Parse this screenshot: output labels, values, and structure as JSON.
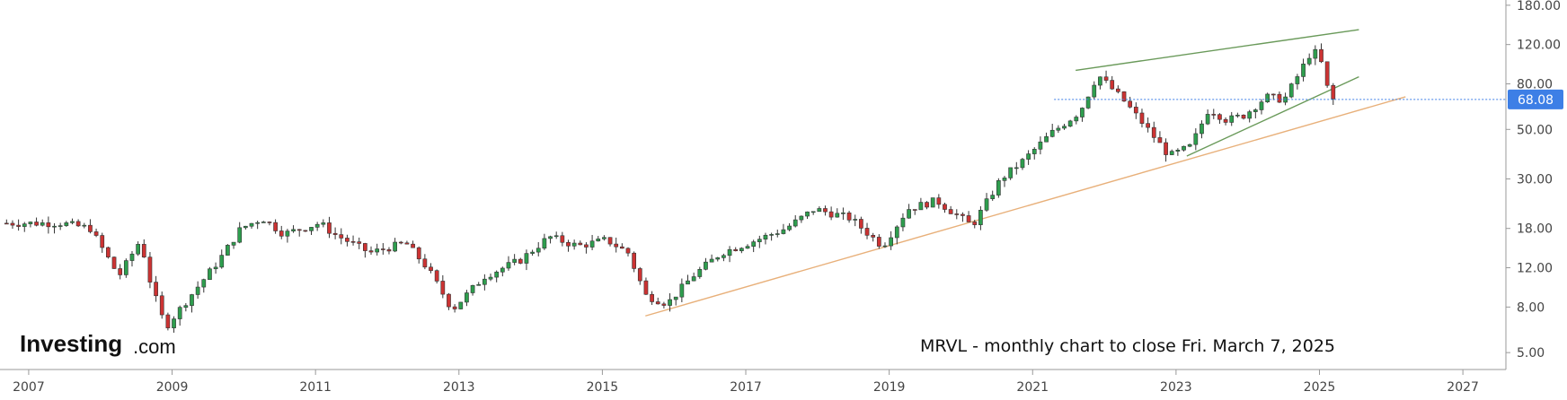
{
  "chart_data": {
    "type": "candlestick",
    "title": "MRVL - monthly chart to close Fri. March 7, 2025",
    "source_logo": {
      "main": "Investing",
      "suffix": ".com"
    },
    "y_scale": "log",
    "ylim": [
      4.2,
      190
    ],
    "xlim": [
      2006.6,
      2027.6
    ],
    "y_ticks": [
      "180.00",
      "120.00",
      "80.00",
      "50.00",
      "30.00",
      "18.00",
      "12.00",
      "8.00",
      "5.00"
    ],
    "x_ticks": [
      "2007",
      "2009",
      "2011",
      "2013",
      "2015",
      "2017",
      "2019",
      "2021",
      "2023",
      "2025",
      "2027"
    ],
    "last_price": {
      "value": 68.08,
      "label": "68.08"
    },
    "colors": {
      "up": "#2e9e4e",
      "down": "#cc3333",
      "wick": "#333333",
      "price_tag": "#3d7fe6",
      "price_line": "#3d7fe6",
      "trend_upper": "#6a9a5a",
      "trend_lower": "#e8b07a",
      "axis": "#999999"
    },
    "anchors": [
      [
        2006.65,
        19
      ],
      [
        2007.5,
        19
      ],
      [
        2007.9,
        18
      ],
      [
        2008.3,
        11
      ],
      [
        2008.6,
        16
      ],
      [
        2008.75,
        10
      ],
      [
        2008.95,
        6.5
      ],
      [
        2009.3,
        9
      ],
      [
        2009.7,
        13
      ],
      [
        2010.0,
        18
      ],
      [
        2010.3,
        20
      ],
      [
        2010.6,
        17
      ],
      [
        2011.1,
        19
      ],
      [
        2011.3,
        17
      ],
      [
        2011.8,
        14
      ],
      [
        2012.3,
        15.5
      ],
      [
        2012.6,
        12
      ],
      [
        2012.95,
        7.8
      ],
      [
        2013.4,
        11
      ],
      [
        2013.9,
        13
      ],
      [
        2014.3,
        16.5
      ],
      [
        2014.7,
        15
      ],
      [
        2015.1,
        16
      ],
      [
        2015.4,
        14
      ],
      [
        2015.65,
        9
      ],
      [
        2015.95,
        8.3
      ],
      [
        2016.3,
        11
      ],
      [
        2016.7,
        14
      ],
      [
        2017.2,
        16
      ],
      [
        2017.6,
        18
      ],
      [
        2018.0,
        22
      ],
      [
        2018.5,
        20
      ],
      [
        2018.95,
        15
      ],
      [
        2019.3,
        22
      ],
      [
        2019.7,
        24
      ],
      [
        2020.2,
        18.5
      ],
      [
        2020.6,
        30
      ],
      [
        2020.9,
        36
      ],
      [
        2021.3,
        48
      ],
      [
        2021.7,
        60
      ],
      [
        2021.95,
        88
      ],
      [
        2022.3,
        68
      ],
      [
        2022.65,
        50
      ],
      [
        2022.95,
        38
      ],
      [
        2023.25,
        42
      ],
      [
        2023.5,
        62
      ],
      [
        2023.75,
        55
      ],
      [
        2024.0,
        58
      ],
      [
        2024.3,
        70
      ],
      [
        2024.55,
        68
      ],
      [
        2024.75,
        88
      ],
      [
        2024.95,
        115
      ],
      [
        2025.1,
        95
      ],
      [
        2025.18,
        68.08
      ]
    ],
    "trend_lines": [
      {
        "name": "upper",
        "from": [
          2021.6,
          92
        ],
        "to": [
          2025.55,
          140
        ]
      },
      {
        "name": "mid",
        "from": [
          2023.15,
          38
        ],
        "to": [
          2025.55,
          86
        ]
      },
      {
        "name": "lower",
        "from": [
          2015.6,
          7.3
        ],
        "to": [
          2026.2,
          70
        ]
      }
    ]
  }
}
